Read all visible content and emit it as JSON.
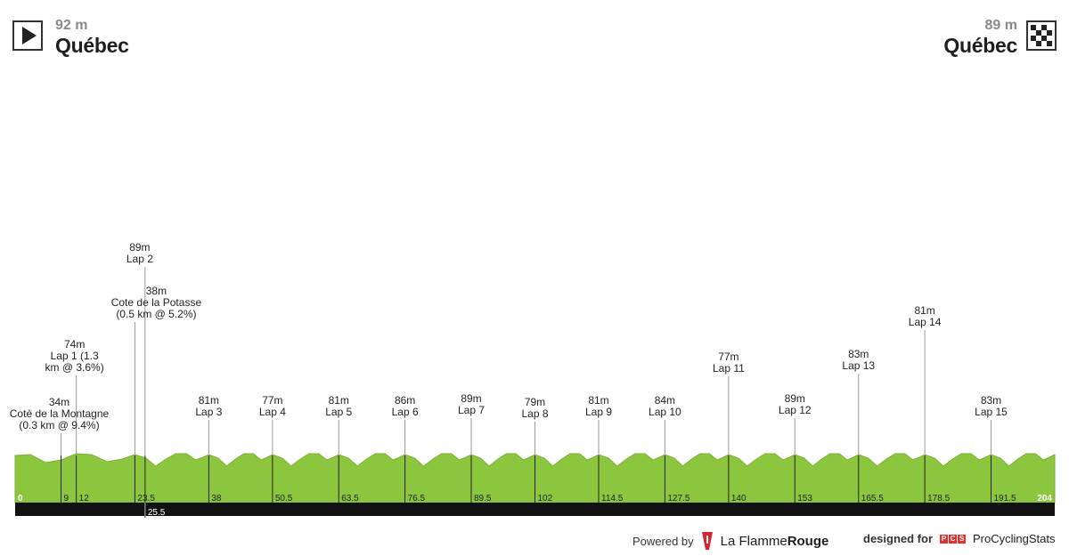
{
  "header": {
    "start": {
      "elevation": "92 m",
      "city": "Québec",
      "icon": "play-icon"
    },
    "finish": {
      "elevation": "89 m",
      "city": "Québec",
      "icon": "checkered-flag-icon"
    }
  },
  "footer": {
    "powered_by": "Powered by",
    "brand_part1": "La Flamme",
    "brand_part2": "Rouge",
    "designed_for": "designed for",
    "pcs_letters": [
      "P",
      "C",
      "S"
    ],
    "pcs_label": "ProCyclingStats"
  },
  "colors": {
    "profile_green": "#8cc63f",
    "profile_green_dark": "#7ab236",
    "base_bar": "#111111",
    "marker_line": "#222222",
    "leader_line": "#9a9a9a"
  },
  "chart_data": {
    "type": "area",
    "title": "",
    "xlabel": "",
    "ylabel": "",
    "x_unit": "km",
    "xlim": [
      0,
      204
    ],
    "distance_ticks": [
      "0",
      "9",
      "12",
      "23.5",
      "38",
      "50.5",
      "63.5",
      "76.5",
      "89.5",
      "102",
      "114.5",
      "127.5",
      "140",
      "153",
      "165.5",
      "178.5",
      "191.5",
      "204"
    ],
    "extra_tick": "25.5",
    "markers": [
      {
        "km": 9,
        "lines": [
          "34m",
          "Cotè de la Montagne",
          "(0.3 km @ 9.4%)"
        ]
      },
      {
        "km": 12,
        "lines": [
          "74m",
          "Lap 1 (1.3",
          "km @ 3.6%)"
        ]
      },
      {
        "km": 23.5,
        "lines": [
          "38m",
          "Cote de la Potasse",
          "(0.5 km @ 5.2%)"
        ]
      },
      {
        "km": 25.5,
        "lines": [
          "89m",
          "Lap 2"
        ]
      },
      {
        "km": 38,
        "lines": [
          "81m",
          "Lap 3"
        ]
      },
      {
        "km": 50.5,
        "lines": [
          "77m",
          "Lap 4"
        ]
      },
      {
        "km": 63.5,
        "lines": [
          "81m",
          "Lap 5"
        ]
      },
      {
        "km": 76.5,
        "lines": [
          "86m",
          "Lap 6"
        ]
      },
      {
        "km": 89.5,
        "lines": [
          "89m",
          "Lap 7"
        ]
      },
      {
        "km": 102,
        "lines": [
          "79m",
          "Lap 8"
        ]
      },
      {
        "km": 114.5,
        "lines": [
          "81m",
          "Lap 9"
        ]
      },
      {
        "km": 127.5,
        "lines": [
          "84m",
          "Lap 10"
        ]
      },
      {
        "km": 140,
        "lines": [
          "77m",
          "Lap 11"
        ]
      },
      {
        "km": 153,
        "lines": [
          "89m",
          "Lap 12"
        ]
      },
      {
        "km": 165.5,
        "lines": [
          "83m",
          "Lap 13"
        ]
      },
      {
        "km": 178.5,
        "lines": [
          "81m",
          "Lap 14"
        ]
      },
      {
        "km": 191.5,
        "lines": [
          "83m",
          "Lap 15"
        ]
      }
    ]
  }
}
